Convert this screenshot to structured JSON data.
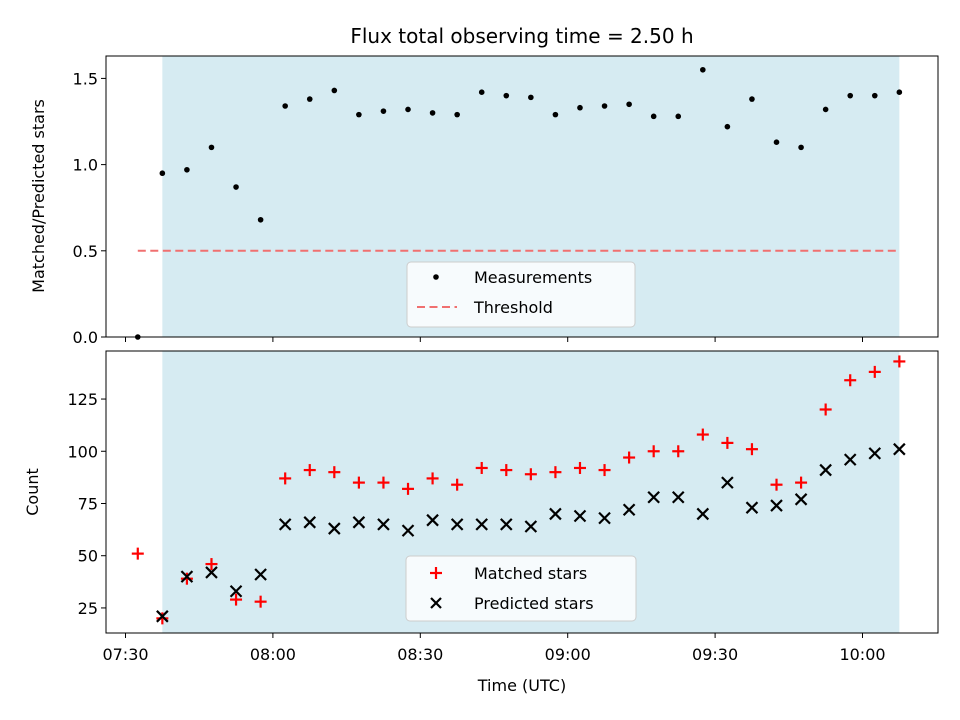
{
  "chart_data": [
    {
      "type": "scatter",
      "title": "Flux total observing time = 2.50 h",
      "xlabel": "",
      "ylabel": "Matched/Predicted stars",
      "ylim": [
        0.0,
        1.63
      ],
      "yticks": [
        "0.0",
        "0.5",
        "1.0",
        "1.5"
      ],
      "legend": "bottom-center",
      "highlight_span": {
        "start": "07:37.5",
        "end": "10:07.5"
      },
      "series": [
        {
          "name": "Measurements",
          "style": "dot",
          "color": "#000000",
          "values": [
            0.0,
            0.95,
            0.97,
            1.1,
            0.87,
            0.68,
            1.34,
            1.38,
            1.43,
            1.29,
            1.31,
            1.32,
            1.3,
            1.29,
            1.42,
            1.4,
            1.39,
            1.29,
            1.33,
            1.34,
            1.35,
            1.28,
            1.28,
            1.55,
            1.22,
            1.38,
            1.13,
            1.1,
            1.32,
            1.4,
            1.4,
            1.42
          ]
        },
        {
          "name": "Threshold",
          "style": "dashed-line",
          "color": "#f07070",
          "x_range": [
            "07:32.5",
            "10:07.5"
          ],
          "value": 0.5
        }
      ]
    },
    {
      "type": "scatter",
      "title": "",
      "xlabel": "Time (UTC)",
      "ylabel": "Count",
      "ylim": [
        13,
        148
      ],
      "yticks": [
        "25",
        "50",
        "75",
        "100",
        "125"
      ],
      "xticks": [
        "07:30",
        "08:00",
        "08:30",
        "09:00",
        "09:30",
        "10:00"
      ],
      "legend": "bottom-center",
      "highlight_span": {
        "start": "07:37.5",
        "end": "10:07.5"
      },
      "series": [
        {
          "name": "Matched stars",
          "style": "plus",
          "color": "#ff0000",
          "values": [
            51,
            20,
            39,
            46,
            29,
            28,
            87,
            91,
            90,
            85,
            85,
            82,
            87,
            84,
            92,
            91,
            89,
            90,
            92,
            91,
            97,
            100,
            100,
            108,
            104,
            101,
            84,
            85,
            120,
            134,
            138,
            143
          ]
        },
        {
          "name": "Predicted stars",
          "style": "x",
          "color": "#000000",
          "values": [
            null,
            21,
            40,
            42,
            33,
            41,
            65,
            66,
            63,
            66,
            65,
            62,
            67,
            65,
            65,
            65,
            64,
            70,
            69,
            68,
            72,
            78,
            78,
            70,
            85,
            73,
            74,
            77,
            91,
            96,
            99,
            101
          ]
        }
      ]
    }
  ],
  "time_points": [
    "07:32.5",
    "07:37.5",
    "07:42.5",
    "07:47.5",
    "07:52.5",
    "07:57.5",
    "08:02.5",
    "08:07.5",
    "08:12.5",
    "08:17.5",
    "08:22.5",
    "08:27.5",
    "08:32.5",
    "08:37.5",
    "08:42.5",
    "08:47.5",
    "08:52.5",
    "08:57.5",
    "09:02.5",
    "09:07.5",
    "09:12.5",
    "09:17.5",
    "09:22.5",
    "09:27.5",
    "09:32.5",
    "09:37.5",
    "09:42.5",
    "09:47.5",
    "09:52.5",
    "09:57.5",
    "10:02.5",
    "10:07.5"
  ],
  "colors": {
    "span_fill": "#add8e6",
    "threshold": "#f07070",
    "matched": "#ff0000",
    "predicted": "#000000"
  }
}
